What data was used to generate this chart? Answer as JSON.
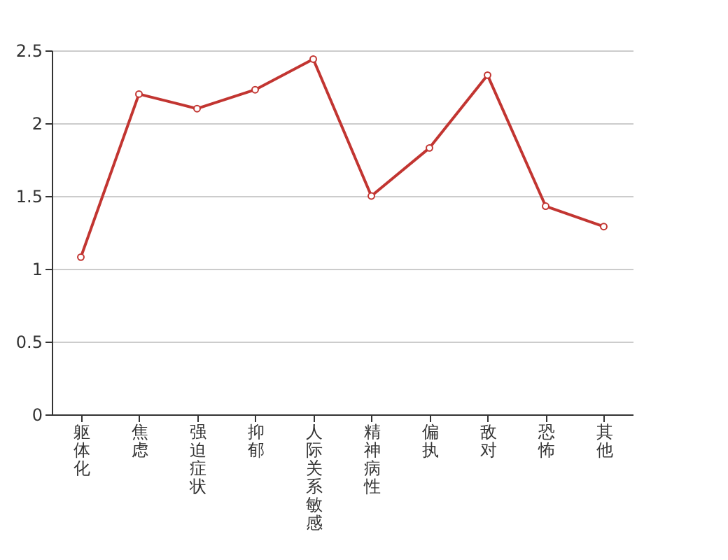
{
  "chart_data": {
    "type": "line",
    "categories": [
      "躯体化",
      "焦虑",
      "强迫症状",
      "抑郁",
      "人际关系敏感",
      "精神病性",
      "偏执",
      "敌对",
      "恐怖",
      "其他"
    ],
    "series": [
      {
        "color": "#c23531",
        "values": [
          1.08,
          2.2,
          2.1,
          2.23,
          2.44,
          1.5,
          1.83,
          2.33,
          1.43,
          1.29
        ]
      }
    ],
    "ylim": [
      0,
      2.5
    ],
    "yticks": [
      0,
      0.5,
      1,
      1.5,
      2,
      2.5
    ],
    "grid": "y",
    "marker": "circle",
    "line_style": "solid"
  }
}
